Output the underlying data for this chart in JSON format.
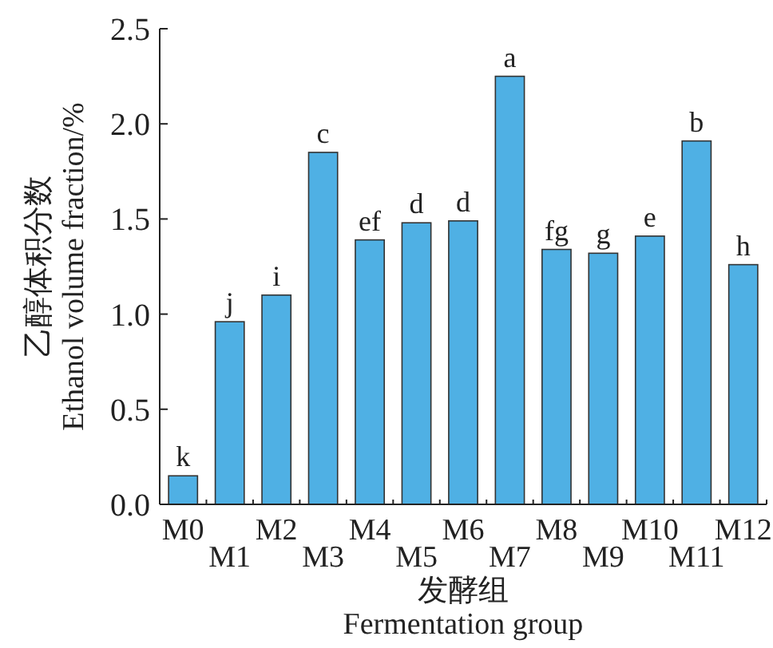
{
  "chart_data": {
    "type": "bar",
    "xlabel": "发酵组\nFermentation group",
    "ylabel": "乙醇体积分数\nEthanol volume fraction/%",
    "categories": [
      "M0",
      "M1",
      "M2",
      "M3",
      "M4",
      "M5",
      "M6",
      "M7",
      "M8",
      "M9",
      "M10",
      "M11",
      "M12"
    ],
    "values": [
      0.15,
      0.96,
      1.1,
      1.85,
      1.39,
      1.48,
      1.49,
      2.25,
      1.34,
      1.32,
      1.41,
      1.91,
      1.26
    ],
    "color": "#4fb0e4",
    "ylim": [
      0,
      2.5
    ],
    "yticks": [
      {
        "value": 0,
        "label": "0.0"
      },
      {
        "value": 0.5,
        "label": "0.5"
      },
      {
        "value": 1,
        "label": "1.0"
      },
      {
        "value": 1.5,
        "label": "1.5"
      },
      {
        "value": 2,
        "label": "2.0"
      },
      {
        "value": 2.5,
        "label": "2.5"
      }
    ],
    "grid": false,
    "annotations": [
      {
        "text": "k",
        "x": "M0",
        "y": 0.15
      },
      {
        "text": "j",
        "x": "M1",
        "y": 0.96
      },
      {
        "text": "i",
        "x": "M2",
        "y": 1.1
      },
      {
        "text": "c",
        "x": "M3",
        "y": 1.85
      },
      {
        "text": "ef",
        "x": "M4",
        "y": 1.39
      },
      {
        "text": "d",
        "x": "M5",
        "y": 1.48
      },
      {
        "text": "d",
        "x": "M6",
        "y": 1.49
      },
      {
        "text": "a",
        "x": "M7",
        "y": 2.25
      },
      {
        "text": "fg",
        "x": "M8",
        "y": 1.34
      },
      {
        "text": "g",
        "x": "M9",
        "y": 1.32
      },
      {
        "text": "e",
        "x": "M10",
        "y": 1.41
      },
      {
        "text": "b",
        "x": "M11",
        "y": 1.91
      },
      {
        "text": "h",
        "x": "M12",
        "y": 1.26
      }
    ]
  }
}
